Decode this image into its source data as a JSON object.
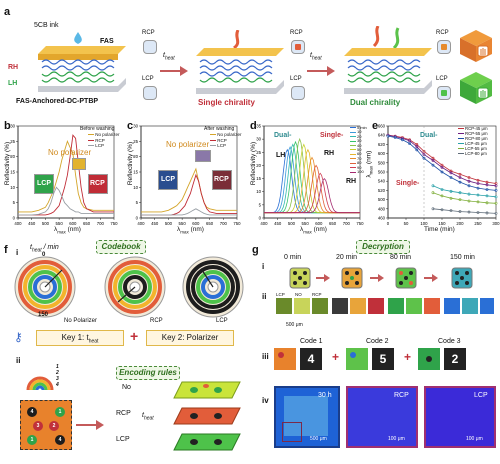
{
  "panels": {
    "a": "a",
    "b": "b",
    "c": "c",
    "d": "d",
    "e": "e",
    "f": "f",
    "g": "g"
  },
  "a": {
    "ink": "5CB ink",
    "fas": "FAS",
    "rh": "RH",
    "lh": "LH",
    "substrate": "FAS-Anchored-DC-PTBP",
    "rcp": "RCP",
    "lcp": "LCP",
    "heat": "t",
    "heat_sub": "heat",
    "single": "Single chirality",
    "dual": "Dual chirality"
  },
  "b": {
    "ylabel": "Reflectivity (%)",
    "xlabel": "λ",
    "xlabel_sub": "max",
    "xlabel_unit": " (nm)",
    "legend_title": "Before washing",
    "legend": [
      "No polarizer",
      "RCP",
      "LCP"
    ],
    "no_polarizer": "No polarizer",
    "lcp": "LCP",
    "rcp": "RCP",
    "xticks": [
      "400",
      "450",
      "500",
      "550",
      "600",
      "650",
      "700",
      "750"
    ],
    "yticks": [
      "0",
      "5",
      "10",
      "15",
      "20",
      "25",
      "30"
    ]
  },
  "c": {
    "ylabel": "Reflectivity (%)",
    "xlabel": "λ",
    "xlabel_sub": "max",
    "xlabel_unit": " (nm)",
    "legend_title": "After washing",
    "legend": [
      "No polarizer",
      "RCP",
      "LCP"
    ],
    "no_polarizer": "No polarizer",
    "lcp": "LCP",
    "rcp": "RCP",
    "xticks": [
      "400",
      "450",
      "500",
      "550",
      "600",
      "650",
      "700",
      "750"
    ],
    "yticks": [
      "0",
      "5",
      "10",
      "15",
      "20",
      "25",
      "30"
    ]
  },
  "d": {
    "ylabel": "Reflectivity (%)",
    "xlabel": "λ",
    "xlabel_sub": "max",
    "xlabel_unit": " (nm)",
    "dual": "Dual-",
    "single": "Single-",
    "lh": "LH",
    "rh1": "RH",
    "rh2": "RH",
    "legend": [
      "5 min",
      "10",
      "20",
      "30",
      "40",
      "50",
      "60",
      "70",
      "80",
      "90",
      "100"
    ],
    "xticks": [
      "400",
      "450",
      "500",
      "550",
      "600",
      "650",
      "700",
      "750"
    ],
    "yticks": [
      "0",
      "5",
      "10",
      "15",
      "20",
      "25",
      "30",
      "35"
    ]
  },
  "e": {
    "ylabel": "λ",
    "ylabel_sub": "max",
    "ylabel_unit": " (nm)",
    "xlabel": "Time (min)",
    "dual": "Dual-",
    "single": "Single-",
    "legend": [
      "RCP-45 μm",
      "RCP-55 μm",
      "RCP-80 μm",
      "LCP-45 μm",
      "LCP-55 μm",
      "LCP-80 μm"
    ],
    "xticks": [
      "0",
      "50",
      "100",
      "150",
      "200",
      "250",
      "300"
    ],
    "yticks": [
      "460",
      "480",
      "500",
      "520",
      "540",
      "560",
      "580",
      "600",
      "620",
      "640",
      "660"
    ]
  },
  "f": {
    "sub_i": "i",
    "sub_ii": "ii",
    "codebook": "Codebook",
    "theat": "t",
    "theat_sub": "heat",
    "theat_unit": " / min",
    "no_polarizer": "No Polarizer",
    "rcp": "RCP",
    "lcp": "LCP",
    "dial_0": "0",
    "dial_150": "150",
    "key1": "Key 1: t",
    "key1_sub": "heat",
    "plus": "+",
    "key2": "Key 2: Polarizer",
    "encoding": "Encoding rules",
    "no": "No",
    "rcp2": "RCP",
    "lcp2": "LCP",
    "heat": "t",
    "heat_sub": "heat",
    "ring_nums": [
      "1",
      "2",
      "3",
      "4"
    ],
    "grid_nums": [
      "4",
      "1",
      "3",
      "2",
      "1",
      "4"
    ]
  },
  "g": {
    "decryption": "Decryption",
    "sub_i": "i",
    "sub_ii": "ii",
    "sub_iii": "iii",
    "sub_iv": "iv",
    "times": [
      "0 min",
      "20 min",
      "80 min",
      "150 min"
    ],
    "lcp": "LCP",
    "no": "NO",
    "rcp": "RCP",
    "scale1": "500 μm",
    "code1": "Code 1",
    "code2": "Code 2",
    "code3": "Code 3",
    "digit1": "4",
    "digit2": "5",
    "digit3": "2",
    "iv_time": "30 h",
    "iv_rcp": "RCP",
    "iv_lcp": "LCP",
    "iv_scale1": "500 μm",
    "iv_scale2": "100 μm",
    "iv_scale3": "100 μm"
  },
  "chart_data": [
    {
      "type": "line",
      "panel": "b",
      "title": "",
      "xlabel": "λmax (nm)",
      "ylabel": "Reflectivity (%)",
      "xlim": [
        400,
        750
      ],
      "ylim": [
        0,
        30
      ],
      "x": [
        400,
        425,
        450,
        475,
        500,
        510,
        520,
        530,
        540,
        550,
        560,
        570,
        580,
        590,
        600,
        610,
        620,
        630,
        640,
        650,
        675,
        700,
        725,
        750
      ],
      "series": [
        {
          "name": "No polarizer",
          "color": "#d4a52a",
          "values": [
            2,
            2,
            2,
            2.5,
            3.5,
            5,
            7,
            9,
            12,
            15,
            19,
            22,
            25,
            23,
            21,
            14,
            8,
            5,
            3.5,
            3,
            2.5,
            2.5,
            2.5,
            2.5
          ]
        },
        {
          "name": "RCP",
          "color": "#c02c36",
          "values": [
            1,
            1,
            1,
            1,
            1,
            1.2,
            1.5,
            2,
            3,
            4,
            7,
            10,
            14,
            20,
            27,
            26,
            18,
            10,
            5,
            3,
            2,
            2,
            2,
            2
          ]
        },
        {
          "name": "LCP",
          "color": "#9aa0a6",
          "values": [
            1,
            1,
            1,
            1.2,
            2,
            3,
            5,
            8,
            10,
            9,
            7,
            5,
            4,
            3,
            2.5,
            2,
            2,
            1.5,
            1.5,
            1.5,
            1.5,
            1.5,
            1.5,
            1.5
          ]
        }
      ]
    },
    {
      "type": "line",
      "panel": "c",
      "title": "",
      "xlabel": "λmax (nm)",
      "ylabel": "Reflectivity (%)",
      "xlim": [
        400,
        750
      ],
      "ylim": [
        0,
        30
      ],
      "x": [
        400,
        425,
        450,
        475,
        500,
        510,
        520,
        530,
        540,
        550,
        560,
        570,
        580,
        590,
        600,
        610,
        620,
        630,
        640,
        650,
        675,
        700,
        725,
        750
      ],
      "series": [
        {
          "name": "No polarizer",
          "color": "#d4a52a",
          "values": [
            2,
            2,
            2,
            2,
            2.5,
            3,
            3.5,
            4,
            5,
            6,
            8,
            10,
            12,
            14,
            16,
            12,
            8,
            5,
            3.5,
            3,
            2.5,
            2.5,
            2.5,
            2.5
          ]
        },
        {
          "name": "RCP",
          "color": "#c02c36",
          "values": [
            1,
            1,
            1,
            1,
            1,
            1,
            1.2,
            1.5,
            2,
            3,
            4,
            6,
            8,
            11,
            14,
            12,
            8,
            5,
            3,
            2,
            1.5,
            1.5,
            1.5,
            1.5
          ]
        },
        {
          "name": "LCP",
          "color": "#9aa0a6",
          "values": [
            1,
            1,
            1,
            1,
            1,
            1,
            1,
            1,
            1,
            1,
            1.2,
            1.5,
            2,
            2.5,
            3,
            2.5,
            2,
            1.5,
            1.2,
            1,
            1,
            1,
            1,
            1
          ]
        }
      ]
    },
    {
      "type": "line",
      "panel": "d",
      "title": "",
      "xlabel": "λmax (nm)",
      "ylabel": "Reflectivity (%)",
      "xlim": [
        400,
        750
      ],
      "ylim": [
        0,
        35
      ],
      "peaks": [
        {
          "name": "5 min",
          "color": "#2a6fd6",
          "center": 485,
          "height": 24
        },
        {
          "name": "10",
          "color": "#3b9ad9",
          "center": 495,
          "height": 25
        },
        {
          "name": "20",
          "color": "#30b8b0",
          "center": 505,
          "height": 26
        },
        {
          "name": "30",
          "color": "#35c46a",
          "center": 515,
          "height": 27
        },
        {
          "name": "40",
          "color": "#8bc34a",
          "center": 530,
          "height": 28
        },
        {
          "name": "50",
          "color": "#c7cf2f",
          "center": 545,
          "height": 26
        },
        {
          "name": "60",
          "color": "#e7b52c",
          "center": 560,
          "height": 24
        },
        {
          "name": "70",
          "color": "#e88b2c",
          "center": 575,
          "height": 21
        },
        {
          "name": "80",
          "color": "#e0603b",
          "center": 590,
          "height": 18
        },
        {
          "name": "90",
          "color": "#cf3d52",
          "center": 605,
          "height": 15
        },
        {
          "name": "100",
          "color": "#a42a6f",
          "center": 620,
          "height": 13
        }
      ]
    },
    {
      "type": "line",
      "panel": "e",
      "title": "",
      "xlabel": "Time (min)",
      "ylabel": "λmax (nm)",
      "xlim": [
        0,
        300
      ],
      "ylim": [
        460,
        660
      ],
      "x": [
        0,
        20,
        40,
        60,
        80,
        100,
        125,
        150,
        175,
        200,
        225,
        250,
        275,
        300
      ],
      "series": [
        {
          "name": "RCP-45 μm",
          "color": "#c0303a",
          "values": [
            640,
            638,
            635,
            630,
            620,
            605,
            590,
            575,
            562,
            555,
            548,
            542,
            538,
            535
          ]
        },
        {
          "name": "RCP-55 μm",
          "color": "#6a1b7f",
          "values": [
            640,
            637,
            633,
            628,
            615,
            598,
            585,
            570,
            558,
            548,
            540,
            535,
            532,
            530
          ]
        },
        {
          "name": "RCP-80 μm",
          "color": "#1c4fa6",
          "values": [
            638,
            635,
            630,
            622,
            608,
            590,
            575,
            560,
            548,
            538,
            530,
            525,
            522,
            520
          ]
        },
        {
          "name": "LCP-45 μm",
          "color": "#28a0a8",
          "values": [
            null,
            null,
            null,
            null,
            null,
            null,
            530,
            522,
            518,
            515,
            512,
            510,
            508,
            506
          ]
        },
        {
          "name": "LCP-55 μm",
          "color": "#7fae3a",
          "values": [
            null,
            null,
            null,
            null,
            null,
            null,
            515,
            508,
            503,
            500,
            497,
            495,
            493,
            492
          ]
        },
        {
          "name": "LCP-80 μm",
          "color": "#5e6b78",
          "values": [
            null,
            null,
            null,
            null,
            null,
            null,
            480,
            478,
            476,
            474,
            473,
            472,
            471,
            470
          ]
        }
      ]
    }
  ]
}
